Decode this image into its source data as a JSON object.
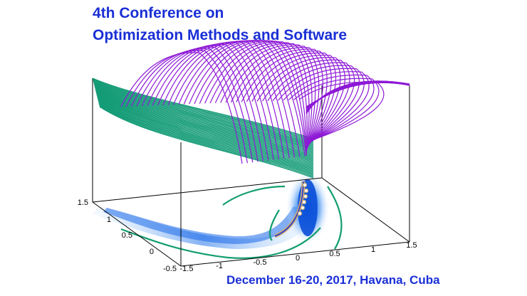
{
  "header": {
    "line1": "4th Conference on",
    "line2": "Optimization Methods and Software"
  },
  "footer": {
    "text": "December 16-20,  2017, Havana, Cuba"
  },
  "plot": {
    "x_ticks": [
      "-1.5",
      "-1",
      "-0.5",
      "0",
      "0.5",
      "1",
      "1.5"
    ],
    "y_ticks": [
      "1.5",
      "1",
      "0.5",
      "0",
      "-0.5"
    ],
    "colors": {
      "surface_purple": "#8e1ad6",
      "surface_green": "#139b76",
      "contour_green": "#129e6f",
      "heat_blue": "#0a5ee6",
      "path_outline": "#c9ab7a",
      "title_blue": "#1a2fd6"
    }
  }
}
